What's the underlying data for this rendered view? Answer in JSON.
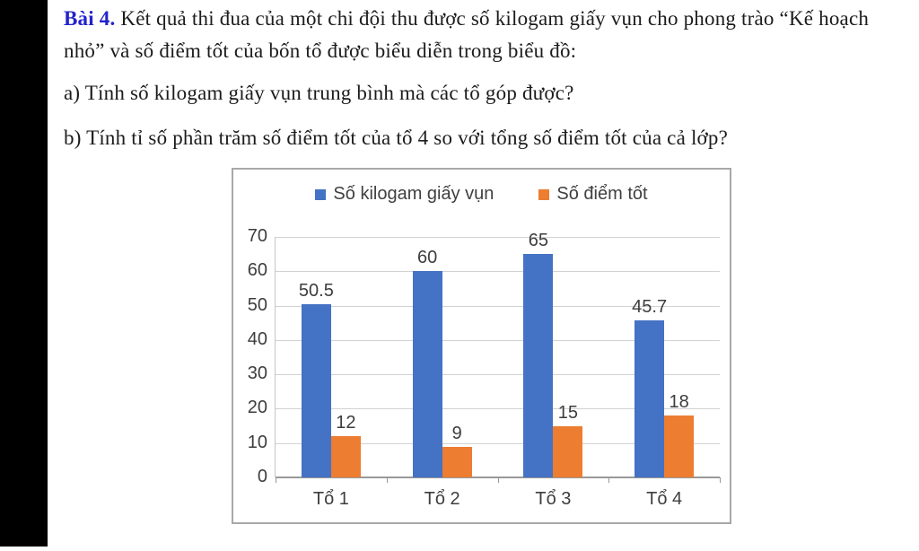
{
  "problem": {
    "label": "Bài 4.",
    "line1": "Kết quả thi đua của một chi đội thu được số kilogam giấy vụn cho phong trào “Kế hoạch",
    "line2": "nhỏ” và số điểm tốt của bốn tổ được biểu diễn trong biểu đồ:",
    "question_a": "a) Tính số kilogam giấy vụn trung bình mà các tổ góp được?",
    "question_b": "b) Tính tỉ số phần trăm số điểm tốt của tổ 4 so với tổng số điểm tốt của cả lớp?"
  },
  "chart_data": {
    "type": "bar",
    "categories": [
      "Tổ 1",
      "Tổ 2",
      "Tổ 3",
      "Tổ 4"
    ],
    "series": [
      {
        "name": "Số kilogam giấy vụn",
        "color": "#4472C4",
        "values": [
          50.5,
          60,
          65,
          45.7
        ]
      },
      {
        "name": "Số điểm tốt",
        "color": "#ED7D31",
        "values": [
          12,
          9,
          15,
          18
        ]
      }
    ],
    "title": "",
    "xlabel": "",
    "ylabel": "",
    "ylim": [
      0,
      70
    ],
    "yticks": [
      0,
      10,
      20,
      30,
      40,
      50,
      60,
      70
    ],
    "grid": true,
    "data_labels": true,
    "legend_position": "top"
  }
}
